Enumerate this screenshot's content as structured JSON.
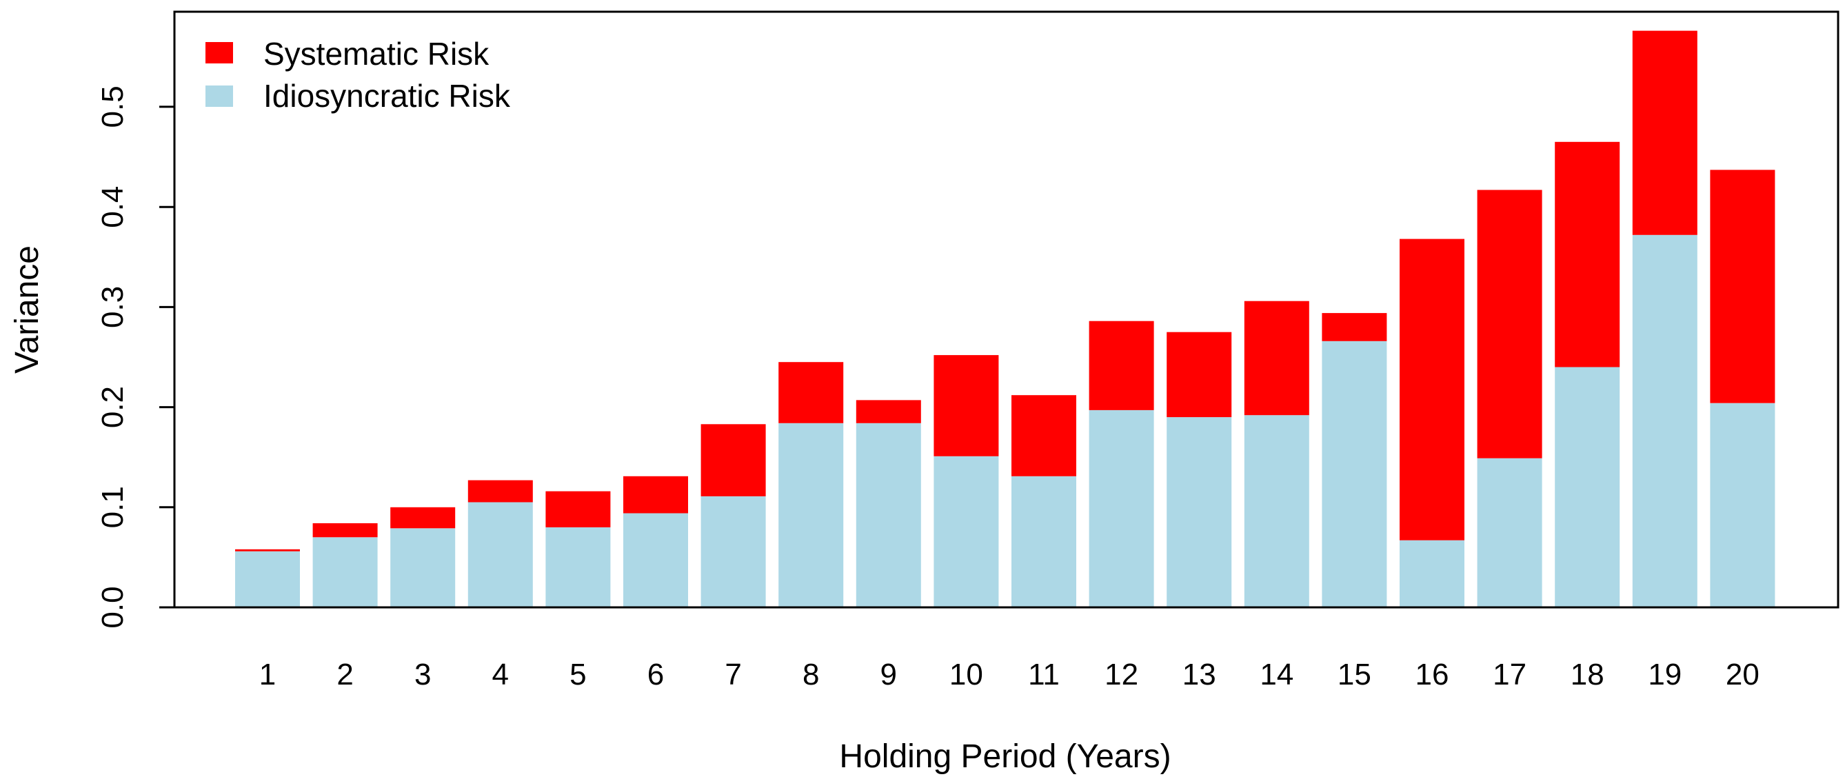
{
  "chart_data": {
    "type": "bar",
    "stacked": true,
    "title": "",
    "xlabel": "Holding Period (Years)",
    "ylabel": "Variance",
    "ylim": [
      0,
      0.595
    ],
    "yticks": [
      "0.0",
      "0.1",
      "0.2",
      "0.3",
      "0.4",
      "0.5"
    ],
    "categories": [
      "1",
      "2",
      "3",
      "4",
      "5",
      "6",
      "7",
      "8",
      "9",
      "10",
      "11",
      "12",
      "13",
      "14",
      "15",
      "16",
      "17",
      "18",
      "19",
      "20"
    ],
    "series": [
      {
        "name": "Idiosyncratic Risk",
        "color": "#add8e6",
        "values": [
          0.056,
          0.07,
          0.079,
          0.105,
          0.08,
          0.094,
          0.111,
          0.184,
          0.184,
          0.151,
          0.131,
          0.197,
          0.19,
          0.192,
          0.266,
          0.067,
          0.149,
          0.24,
          0.372,
          0.204
        ]
      },
      {
        "name": "Systematic Risk",
        "color": "#ff0000",
        "values": [
          0.002,
          0.014,
          0.021,
          0.022,
          0.036,
          0.037,
          0.072,
          0.061,
          0.023,
          0.101,
          0.081,
          0.089,
          0.085,
          0.114,
          0.028,
          0.301,
          0.268,
          0.225,
          0.204,
          0.233
        ]
      }
    ],
    "legend": {
      "position": "top-left",
      "entries": [
        "Systematic Risk",
        "Idiosyncratic Risk"
      ]
    },
    "grid": false
  }
}
